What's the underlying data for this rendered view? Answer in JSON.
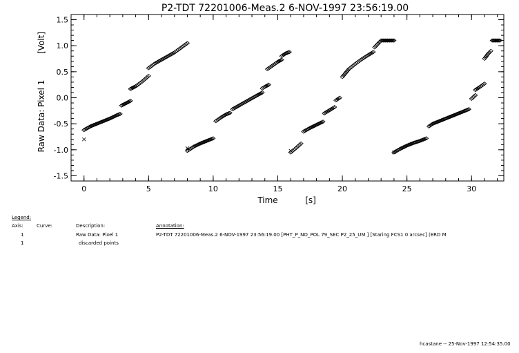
{
  "chart_data": {
    "type": "scatter",
    "title": "P2-TDT 72201006-Meas.2     6-NOV-1997 23:56:19.00",
    "xlabel": "Time",
    "xunit": "[s]",
    "ylabel": "Raw Data: Pixel 1",
    "yunit": "[Volt]",
    "xlim": [
      -1,
      32.5
    ],
    "ylim": [
      -1.6,
      1.6
    ],
    "xticks": [
      "0",
      "5",
      "10",
      "15",
      "20",
      "25",
      "30"
    ],
    "yticks": [
      "1.5",
      "1.0",
      "0.5",
      "0.0",
      "-0.5",
      "-1.0",
      "-1.5"
    ],
    "marker": "diamond",
    "series": [
      {
        "segments": [
          [
            [
              0.0,
              -0.62
            ],
            [
              0.5,
              -0.55
            ],
            [
              1.0,
              -0.5
            ],
            [
              1.5,
              -0.45
            ],
            [
              2.0,
              -0.4
            ],
            [
              2.5,
              -0.34
            ],
            [
              2.8,
              -0.31
            ]
          ],
          [
            [
              2.9,
              -0.15
            ],
            [
              3.3,
              -0.1
            ],
            [
              3.6,
              -0.06
            ]
          ],
          [
            [
              3.6,
              0.17
            ],
            [
              4.0,
              0.22
            ],
            [
              4.5,
              0.31
            ],
            [
              5.0,
              0.42
            ]
          ],
          [
            [
              5.0,
              0.57
            ],
            [
              5.5,
              0.66
            ],
            [
              6.0,
              0.73
            ],
            [
              6.5,
              0.8
            ],
            [
              7.0,
              0.87
            ],
            [
              7.5,
              0.96
            ],
            [
              8.0,
              1.05
            ]
          ],
          [
            [
              8.0,
              -1.02
            ],
            [
              8.5,
              -0.94
            ],
            [
              9.0,
              -0.88
            ],
            [
              9.5,
              -0.83
            ],
            [
              10.0,
              -0.78
            ]
          ],
          [
            [
              10.2,
              -0.45
            ],
            [
              10.6,
              -0.38
            ],
            [
              11.0,
              -0.32
            ],
            [
              11.3,
              -0.29
            ]
          ],
          [
            [
              11.5,
              -0.22
            ],
            [
              12.0,
              -0.15
            ],
            [
              12.5,
              -0.08
            ],
            [
              13.0,
              -0.01
            ],
            [
              13.5,
              0.06
            ],
            [
              13.8,
              0.1
            ]
          ],
          [
            [
              13.8,
              0.18
            ],
            [
              14.0,
              0.21
            ],
            [
              14.3,
              0.25
            ]
          ],
          [
            [
              14.2,
              0.55
            ],
            [
              14.6,
              0.62
            ],
            [
              15.0,
              0.69
            ],
            [
              15.3,
              0.73
            ]
          ],
          [
            [
              15.3,
              0.8
            ],
            [
              15.6,
              0.85
            ],
            [
              15.9,
              0.88
            ]
          ],
          [
            [
              16.0,
              -1.05
            ],
            [
              16.4,
              -0.97
            ],
            [
              16.8,
              -0.88
            ]
          ],
          [
            [
              17.0,
              -0.65
            ],
            [
              17.5,
              -0.58
            ],
            [
              18.0,
              -0.52
            ],
            [
              18.5,
              -0.46
            ]
          ],
          [
            [
              18.6,
              -0.3
            ],
            [
              19.0,
              -0.24
            ],
            [
              19.4,
              -0.18
            ]
          ],
          [
            [
              19.5,
              -0.05
            ],
            [
              19.8,
              0.0
            ]
          ],
          [
            [
              20.0,
              0.4
            ],
            [
              20.5,
              0.55
            ],
            [
              21.0,
              0.65
            ],
            [
              21.5,
              0.74
            ],
            [
              22.0,
              0.82
            ],
            [
              22.4,
              0.88
            ]
          ],
          [
            [
              22.5,
              0.97
            ],
            [
              22.8,
              1.05
            ],
            [
              23.0,
              1.1
            ],
            [
              23.5,
              1.1
            ],
            [
              24.0,
              1.1
            ]
          ],
          [
            [
              24.0,
              -1.05
            ],
            [
              24.5,
              -0.98
            ],
            [
              25.0,
              -0.92
            ],
            [
              25.5,
              -0.87
            ],
            [
              26.0,
              -0.83
            ],
            [
              26.5,
              -0.78
            ]
          ],
          [
            [
              26.7,
              -0.55
            ],
            [
              27.0,
              -0.5
            ],
            [
              27.5,
              -0.45
            ],
            [
              28.0,
              -0.4
            ],
            [
              28.5,
              -0.35
            ],
            [
              29.0,
              -0.3
            ],
            [
              29.5,
              -0.25
            ],
            [
              29.8,
              -0.22
            ]
          ],
          [
            [
              30.0,
              -0.02
            ],
            [
              30.3,
              0.05
            ]
          ],
          [
            [
              30.3,
              0.15
            ],
            [
              30.6,
              0.2
            ],
            [
              31.0,
              0.27
            ]
          ],
          [
            [
              31.0,
              0.75
            ],
            [
              31.3,
              0.85
            ],
            [
              31.5,
              0.9
            ]
          ],
          [
            [
              31.6,
              1.1
            ],
            [
              31.9,
              1.1
            ],
            [
              32.2,
              1.1
            ]
          ]
        ]
      },
      {
        "points": [
          [
            0.0,
            -0.8
          ],
          [
            8.0,
            -0.97
          ],
          [
            16.0,
            -1.02
          ],
          [
            24.0,
            -1.05
          ]
        ]
      }
    ]
  },
  "legend": {
    "heading": "Legend:",
    "columns": {
      "axis": "Axis:",
      "curve": "Curve:",
      "description": "Description:",
      "annotation": "Annotation:"
    },
    "rows": [
      {
        "axis": "1",
        "description": "Raw Data: Pixel 1",
        "annotation": "P2-TDT 72201006-Meas.2     6-NOV-1997 23:56:19.00   [PHT_P_NO_POL  79_SEC         P2_25_UM     ]  [Staring FCS1  0 arcsec] (ERD M"
      },
      {
        "axis": "1",
        "description": "discarded points",
        "annotation": ""
      }
    ]
  },
  "footer": "hcastane -- 25-Nov-1997 12:54:35.00"
}
